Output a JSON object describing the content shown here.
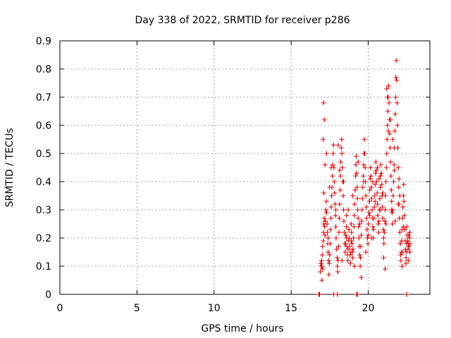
{
  "chart_data": {
    "type": "scatter",
    "title": "Day 338 of 2022, SRMTID for receiver p286",
    "xlabel": "GPS time / hours",
    "ylabel": "SRMTID / TECUs",
    "xlim": [
      0,
      24
    ],
    "ylim": [
      0,
      0.9
    ],
    "xticks": [
      0,
      5,
      10,
      15,
      20
    ],
    "xtick_labels": [
      "0",
      "5",
      "10",
      "15",
      "20"
    ],
    "yticks": [
      0,
      0.1,
      0.2,
      0.3,
      0.4,
      0.5,
      0.6,
      0.7,
      0.8,
      0.9
    ],
    "ytick_labels": [
      "0",
      "0.1",
      "0.2",
      "0.3",
      "0.4",
      "0.5",
      "0.6",
      "0.7",
      "0.8",
      "0.9"
    ],
    "grid": true,
    "marker": "plus",
    "color": "#e00000",
    "series": [
      {
        "name": "SRMTID",
        "points": [
          [
            16.8,
            0.0
          ],
          [
            16.85,
            0.0
          ],
          [
            17.75,
            0.0
          ],
          [
            18.0,
            0.0
          ],
          [
            19.25,
            0.0
          ],
          [
            19.3,
            0.0
          ],
          [
            22.5,
            0.0
          ],
          [
            16.9,
            0.08
          ],
          [
            16.95,
            0.1
          ],
          [
            17.0,
            0.1
          ],
          [
            17.05,
            0.09
          ],
          [
            16.92,
            0.11
          ],
          [
            16.98,
            0.12
          ],
          [
            17.02,
            0.14
          ],
          [
            17.05,
            0.17
          ],
          [
            17.08,
            0.19
          ],
          [
            17.1,
            0.22
          ],
          [
            17.12,
            0.25
          ],
          [
            17.15,
            0.27
          ],
          [
            17.18,
            0.24
          ],
          [
            17.2,
            0.21
          ],
          [
            17.22,
            0.26
          ],
          [
            17.25,
            0.3
          ],
          [
            17.28,
            0.33
          ],
          [
            17.3,
            0.29
          ],
          [
            17.33,
            0.25
          ],
          [
            17.35,
            0.22
          ],
          [
            17.38,
            0.18
          ],
          [
            17.4,
            0.15
          ],
          [
            17.42,
            0.12
          ],
          [
            17.45,
            0.07
          ],
          [
            17.48,
            0.11
          ],
          [
            17.5,
            0.14
          ],
          [
            17.53,
            0.18
          ],
          [
            17.55,
            0.23
          ],
          [
            17.58,
            0.27
          ],
          [
            17.6,
            0.31
          ],
          [
            17.63,
            0.35
          ],
          [
            17.65,
            0.38
          ],
          [
            17.68,
            0.42
          ],
          [
            17.7,
            0.46
          ],
          [
            17.72,
            0.5
          ],
          [
            17.75,
            0.53
          ],
          [
            17.78,
            0.45
          ],
          [
            17.8,
            0.4
          ],
          [
            17.83,
            0.36
          ],
          [
            17.85,
            0.32
          ],
          [
            17.88,
            0.28
          ],
          [
            17.9,
            0.24
          ],
          [
            17.92,
            0.2
          ],
          [
            17.95,
            0.16
          ],
          [
            17.98,
            0.13
          ],
          [
            18.0,
            0.1
          ],
          [
            18.03,
            0.08
          ],
          [
            18.05,
            0.12
          ],
          [
            18.08,
            0.17
          ],
          [
            18.1,
            0.22
          ],
          [
            18.12,
            0.27
          ],
          [
            18.15,
            0.32
          ],
          [
            18.18,
            0.37
          ],
          [
            18.2,
            0.42
          ],
          [
            18.22,
            0.47
          ],
          [
            18.25,
            0.52
          ],
          [
            18.28,
            0.55
          ],
          [
            18.3,
            0.5
          ],
          [
            18.32,
            0.45
          ],
          [
            18.35,
            0.4
          ],
          [
            18.38,
            0.35
          ],
          [
            18.4,
            0.3
          ],
          [
            18.42,
            0.26
          ],
          [
            18.45,
            0.22
          ],
          [
            18.48,
            0.18
          ],
          [
            18.5,
            0.15
          ],
          [
            18.53,
            0.18
          ],
          [
            18.55,
            0.21
          ],
          [
            18.58,
            0.24
          ],
          [
            18.6,
            0.2
          ],
          [
            18.62,
            0.17
          ],
          [
            18.65,
            0.14
          ],
          [
            18.68,
            0.12
          ],
          [
            18.7,
            0.16
          ],
          [
            18.72,
            0.19
          ],
          [
            18.75,
            0.23
          ],
          [
            18.78,
            0.2
          ],
          [
            18.8,
            0.17
          ],
          [
            18.82,
            0.14
          ],
          [
            18.85,
            0.11
          ],
          [
            18.88,
            0.15
          ],
          [
            18.9,
            0.19
          ],
          [
            18.92,
            0.22
          ],
          [
            18.95,
            0.18
          ],
          [
            18.98,
            0.15
          ],
          [
            19.0,
            0.13
          ],
          [
            19.02,
            0.16
          ],
          [
            19.05,
            0.2
          ],
          [
            19.08,
            0.24
          ],
          [
            19.1,
            0.28
          ],
          [
            19.12,
            0.32
          ],
          [
            19.15,
            0.37
          ],
          [
            19.18,
            0.42
          ],
          [
            19.2,
            0.46
          ],
          [
            19.22,
            0.49
          ],
          [
            19.25,
            0.43
          ],
          [
            19.28,
            0.38
          ],
          [
            19.3,
            0.34
          ],
          [
            19.32,
            0.3
          ],
          [
            19.35,
            0.27
          ],
          [
            19.38,
            0.24
          ],
          [
            19.4,
            0.2
          ],
          [
            19.42,
            0.17
          ],
          [
            19.45,
            0.14
          ],
          [
            19.48,
            0.1
          ],
          [
            19.5,
            0.13
          ],
          [
            19.52,
            0.17
          ],
          [
            19.55,
            0.21
          ],
          [
            19.58,
            0.26
          ],
          [
            19.6,
            0.3
          ],
          [
            19.62,
            0.34
          ],
          [
            19.65,
            0.38
          ],
          [
            19.68,
            0.42
          ],
          [
            19.7,
            0.46
          ],
          [
            19.72,
            0.5
          ],
          [
            19.75,
            0.55
          ],
          [
            19.78,
            0.5
          ],
          [
            19.8,
            0.45
          ],
          [
            19.82,
            0.4
          ],
          [
            19.85,
            0.35
          ],
          [
            19.88,
            0.31
          ],
          [
            19.9,
            0.27
          ],
          [
            19.92,
            0.23
          ],
          [
            19.95,
            0.2
          ],
          [
            19.98,
            0.18
          ],
          [
            20.0,
            0.21
          ],
          [
            20.02,
            0.25
          ],
          [
            20.05,
            0.29
          ],
          [
            20.08,
            0.33
          ],
          [
            20.1,
            0.37
          ],
          [
            20.12,
            0.41
          ],
          [
            20.15,
            0.45
          ],
          [
            20.18,
            0.42
          ],
          [
            20.2,
            0.38
          ],
          [
            20.22,
            0.34
          ],
          [
            20.25,
            0.3
          ],
          [
            20.28,
            0.27
          ],
          [
            20.3,
            0.24
          ],
          [
            20.32,
            0.2
          ],
          [
            20.35,
            0.23
          ],
          [
            20.38,
            0.27
          ],
          [
            20.4,
            0.31
          ],
          [
            20.42,
            0.35
          ],
          [
            20.45,
            0.39
          ],
          [
            20.48,
            0.43
          ],
          [
            20.5,
            0.47
          ],
          [
            20.52,
            0.44
          ],
          [
            20.55,
            0.4
          ],
          [
            20.58,
            0.36
          ],
          [
            20.6,
            0.32
          ],
          [
            20.62,
            0.28
          ],
          [
            20.65,
            0.25
          ],
          [
            20.68,
            0.22
          ],
          [
            20.7,
            0.26
          ],
          [
            20.72,
            0.3
          ],
          [
            20.75,
            0.34
          ],
          [
            20.78,
            0.38
          ],
          [
            20.8,
            0.42
          ],
          [
            20.82,
            0.46
          ],
          [
            20.85,
            0.43
          ],
          [
            20.88,
            0.39
          ],
          [
            20.9,
            0.35
          ],
          [
            20.92,
            0.31
          ],
          [
            20.95,
            0.27
          ],
          [
            20.98,
            0.23
          ],
          [
            21.0,
            0.2
          ],
          [
            21.02,
            0.18
          ],
          [
            21.05,
            0.22
          ],
          [
            21.08,
            0.26
          ],
          [
            21.1,
            0.3
          ],
          [
            21.12,
            0.35
          ],
          [
            21.15,
            0.4
          ],
          [
            21.18,
            0.45
          ],
          [
            21.2,
            0.5
          ],
          [
            21.22,
            0.55
          ],
          [
            21.25,
            0.6
          ],
          [
            21.28,
            0.65
          ],
          [
            21.3,
            0.7
          ],
          [
            21.32,
            0.74
          ],
          [
            21.35,
            0.68
          ],
          [
            21.38,
            0.62
          ],
          [
            21.4,
            0.57
          ],
          [
            21.42,
            0.52
          ],
          [
            21.45,
            0.47
          ],
          [
            21.48,
            0.42
          ],
          [
            21.5,
            0.37
          ],
          [
            21.52,
            0.33
          ],
          [
            21.55,
            0.29
          ],
          [
            21.58,
            0.25
          ],
          [
            21.6,
            0.3
          ],
          [
            21.62,
            0.35
          ],
          [
            21.65,
            0.4
          ],
          [
            21.68,
            0.46
          ],
          [
            21.7,
            0.52
          ],
          [
            21.72,
            0.58
          ],
          [
            21.75,
            0.64
          ],
          [
            21.78,
            0.7
          ],
          [
            21.8,
            0.77
          ],
          [
            21.82,
            0.83
          ],
          [
            21.85,
            0.76
          ],
          [
            21.88,
            0.68
          ],
          [
            21.9,
            0.6
          ],
          [
            21.92,
            0.52
          ],
          [
            21.95,
            0.45
          ],
          [
            21.98,
            0.38
          ],
          [
            22.0,
            0.32
          ],
          [
            22.02,
            0.27
          ],
          [
            22.05,
            0.22
          ],
          [
            22.08,
            0.18
          ],
          [
            22.1,
            0.14
          ],
          [
            22.12,
            0.12
          ],
          [
            22.15,
            0.15
          ],
          [
            22.18,
            0.19
          ],
          [
            22.2,
            0.23
          ],
          [
            22.22,
            0.27
          ],
          [
            22.25,
            0.31
          ],
          [
            22.28,
            0.35
          ],
          [
            22.3,
            0.39
          ],
          [
            22.32,
            0.33
          ],
          [
            22.35,
            0.28
          ],
          [
            22.38,
            0.23
          ],
          [
            22.4,
            0.19
          ],
          [
            22.42,
            0.16
          ],
          [
            22.45,
            0.13
          ],
          [
            22.48,
            0.15
          ],
          [
            22.5,
            0.18
          ],
          [
            22.52,
            0.21
          ],
          [
            22.55,
            0.19
          ],
          [
            22.58,
            0.16
          ],
          [
            22.6,
            0.18
          ],
          [
            22.62,
            0.21
          ],
          [
            22.65,
            0.17
          ],
          [
            22.68,
            0.2
          ],
          [
            22.7,
            0.22
          ],
          [
            22.72,
            0.18
          ],
          [
            17.1,
            0.68
          ],
          [
            17.15,
            0.62
          ],
          [
            17.08,
            0.55
          ],
          [
            17.2,
            0.46
          ],
          [
            17.12,
            0.36
          ],
          [
            17.3,
            0.5
          ],
          [
            17.5,
            0.38
          ],
          [
            17.6,
            0.45
          ],
          [
            18.05,
            0.53
          ],
          [
            18.15,
            0.44
          ],
          [
            18.4,
            0.4
          ],
          [
            18.6,
            0.28
          ],
          [
            18.9,
            0.25
          ],
          [
            19.1,
            0.1
          ],
          [
            19.35,
            0.47
          ],
          [
            19.55,
            0.06
          ],
          [
            19.7,
            0.4
          ],
          [
            20.1,
            0.28
          ],
          [
            20.3,
            0.4
          ],
          [
            20.6,
            0.45
          ],
          [
            20.8,
            0.3
          ],
          [
            21.0,
            0.13
          ],
          [
            21.1,
            0.09
          ],
          [
            21.2,
            0.73
          ],
          [
            21.25,
            0.7
          ],
          [
            21.3,
            0.58
          ],
          [
            21.45,
            0.62
          ],
          [
            21.6,
            0.55
          ],
          [
            21.7,
            0.44
          ],
          [
            21.95,
            0.32
          ],
          [
            22.05,
            0.35
          ],
          [
            22.2,
            0.1
          ],
          [
            22.3,
            0.24
          ],
          [
            22.45,
            0.11
          ],
          [
            22.6,
            0.12
          ],
          [
            17.0,
            0.05
          ],
          [
            17.4,
            0.2
          ],
          [
            17.9,
            0.3
          ],
          [
            18.3,
            0.12
          ],
          [
            18.7,
            0.3
          ],
          [
            19.0,
            0.35
          ],
          [
            19.45,
            0.25
          ],
          [
            19.85,
            0.15
          ],
          [
            20.2,
            0.2
          ],
          [
            20.45,
            0.33
          ],
          [
            20.7,
            0.41
          ],
          [
            20.95,
            0.36
          ],
          [
            21.15,
            0.25
          ],
          [
            21.5,
            0.3
          ],
          [
            21.75,
            0.26
          ],
          [
            22.0,
            0.41
          ],
          [
            22.25,
            0.15
          ],
          [
            22.5,
            0.24
          ],
          [
            22.7,
            0.15
          ]
        ]
      }
    ]
  }
}
